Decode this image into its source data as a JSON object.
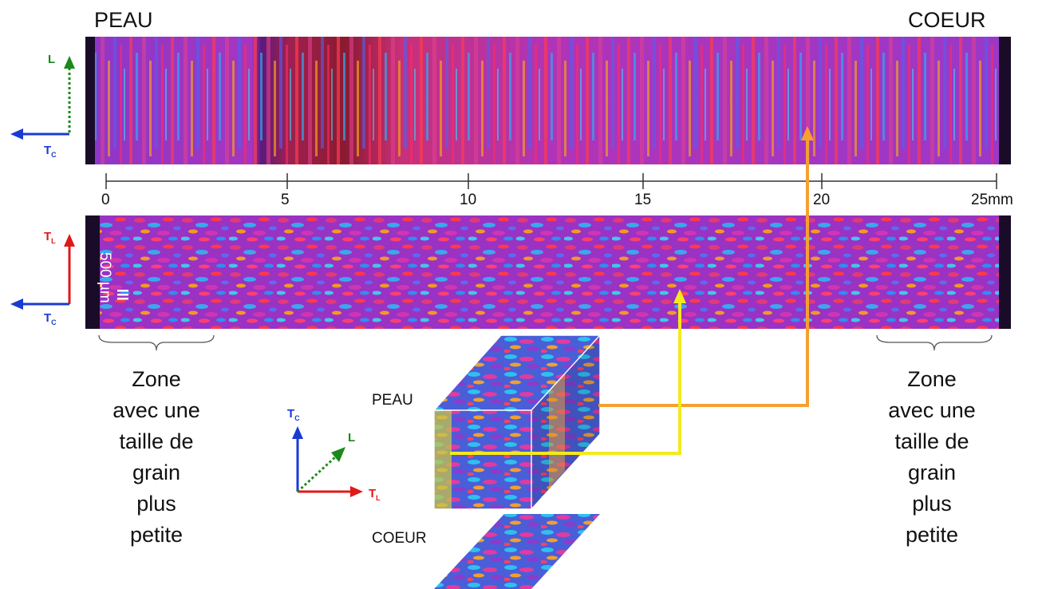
{
  "header": {
    "left": "PEAU",
    "right": "COEUR"
  },
  "scale_bar": {
    "ticks": [
      "0",
      "5",
      "10",
      "15",
      "20",
      "25mm"
    ]
  },
  "micron_bar": "500 µm",
  "zone_text": [
    "Zone",
    "avec une",
    "taille de",
    "grain",
    "plus",
    "petite"
  ],
  "cube_labels": {
    "top": "PEAU",
    "bottom": "COEUR"
  },
  "axes": {
    "top": {
      "vertical": "L",
      "horizontal": "T",
      "horizontal_sub": "C"
    },
    "middle": {
      "vertical": "T",
      "vertical_sub": "L",
      "horizontal": "T",
      "horizontal_sub": "C"
    },
    "cube": {
      "up": "T",
      "up_sub": "C",
      "diag": "L",
      "right": "T",
      "right_sub": "L"
    }
  },
  "colors": {
    "axis_green": "#1a8a1a",
    "axis_blue": "#1a3ad4",
    "axis_red": "#e01818",
    "arrow_orange": "#f5a030",
    "arrow_yellow": "#f2ea1c",
    "map_base": "#8a2ec8",
    "map_edge": "#1a0c28"
  }
}
